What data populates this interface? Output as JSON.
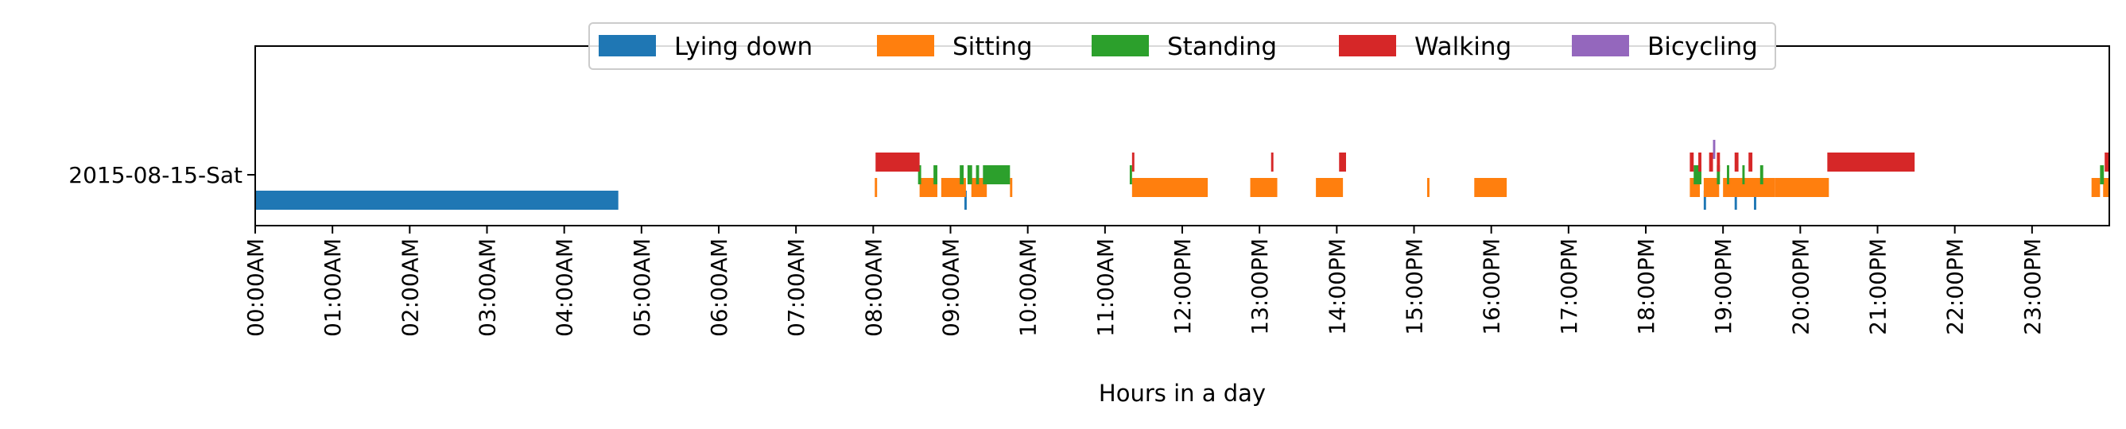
{
  "chart_data": {
    "type": "timeline",
    "title": "",
    "xlabel": "Hours in a day",
    "ylabel": "",
    "x_unit": "hours",
    "xlim": [
      0,
      24
    ],
    "x_ticks": [
      {
        "value": 0,
        "label": "00:00AM"
      },
      {
        "value": 1,
        "label": "01:00AM"
      },
      {
        "value": 2,
        "label": "02:00AM"
      },
      {
        "value": 3,
        "label": "03:00AM"
      },
      {
        "value": 4,
        "label": "04:00AM"
      },
      {
        "value": 5,
        "label": "05:00AM"
      },
      {
        "value": 6,
        "label": "06:00AM"
      },
      {
        "value": 7,
        "label": "07:00AM"
      },
      {
        "value": 8,
        "label": "08:00AM"
      },
      {
        "value": 9,
        "label": "09:00AM"
      },
      {
        "value": 10,
        "label": "10:00AM"
      },
      {
        "value": 11,
        "label": "11:00AM"
      },
      {
        "value": 12,
        "label": "12:00PM"
      },
      {
        "value": 13,
        "label": "13:00PM"
      },
      {
        "value": 14,
        "label": "14:00PM"
      },
      {
        "value": 15,
        "label": "15:00PM"
      },
      {
        "value": 16,
        "label": "16:00PM"
      },
      {
        "value": 17,
        "label": "17:00PM"
      },
      {
        "value": 18,
        "label": "18:00PM"
      },
      {
        "value": 19,
        "label": "19:00PM"
      },
      {
        "value": 20,
        "label": "20:00PM"
      },
      {
        "value": 21,
        "label": "21:00PM"
      },
      {
        "value": 22,
        "label": "22:00PM"
      },
      {
        "value": 23,
        "label": "23:00PM"
      }
    ],
    "y_ticks": [
      "2015-08-15-Sat"
    ],
    "legend_position": "top-center",
    "grid": false,
    "series": [
      {
        "name": "Lying down",
        "color": "#1f77b4",
        "intervals": [
          [
            0,
            4.7
          ],
          [
            9.18,
            9.21
          ],
          [
            18.75,
            18.78
          ],
          [
            19.15,
            19.18
          ],
          [
            19.4,
            19.43
          ]
        ]
      },
      {
        "name": "Sitting",
        "color": "#ff7f0e",
        "intervals": [
          [
            8.02,
            8.05
          ],
          [
            8.6,
            8.83
          ],
          [
            8.88,
            9.2
          ],
          [
            9.27,
            9.47
          ],
          [
            9.77,
            9.8
          ],
          [
            11.35,
            12.33
          ],
          [
            12.88,
            13.23
          ],
          [
            13.73,
            14.08
          ],
          [
            15.17,
            15.2
          ],
          [
            15.78,
            16.2
          ],
          [
            18.57,
            18.7
          ],
          [
            18.75,
            18.95
          ],
          [
            19.0,
            19.67
          ],
          [
            19.67,
            20.37
          ],
          [
            23.77,
            23.88
          ],
          [
            23.92,
            24.0
          ]
        ]
      },
      {
        "name": "Standing",
        "color": "#2ca02c",
        "intervals": [
          [
            8.58,
            8.62
          ],
          [
            8.78,
            8.83
          ],
          [
            9.12,
            9.17
          ],
          [
            9.22,
            9.28
          ],
          [
            9.33,
            9.37
          ],
          [
            9.42,
            9.77
          ],
          [
            11.32,
            11.35
          ],
          [
            18.62,
            18.72
          ],
          [
            18.92,
            18.96
          ],
          [
            19.05,
            19.08
          ],
          [
            19.25,
            19.28
          ],
          [
            19.48,
            19.52
          ],
          [
            23.88,
            23.93
          ]
        ]
      },
      {
        "name": "Walking",
        "color": "#d62728",
        "intervals": [
          [
            8.03,
            8.6
          ],
          [
            11.35,
            11.38
          ],
          [
            13.15,
            13.18
          ],
          [
            14.03,
            14.12
          ],
          [
            18.57,
            18.62
          ],
          [
            18.68,
            18.72
          ],
          [
            18.82,
            18.87
          ],
          [
            18.92,
            18.96
          ],
          [
            19.15,
            19.2
          ],
          [
            19.33,
            19.38
          ],
          [
            20.35,
            21.48
          ],
          [
            23.94,
            24.0
          ]
        ]
      },
      {
        "name": "Bicycling",
        "color": "#9467bd",
        "intervals": [
          [
            18.87,
            18.9
          ]
        ]
      }
    ]
  }
}
